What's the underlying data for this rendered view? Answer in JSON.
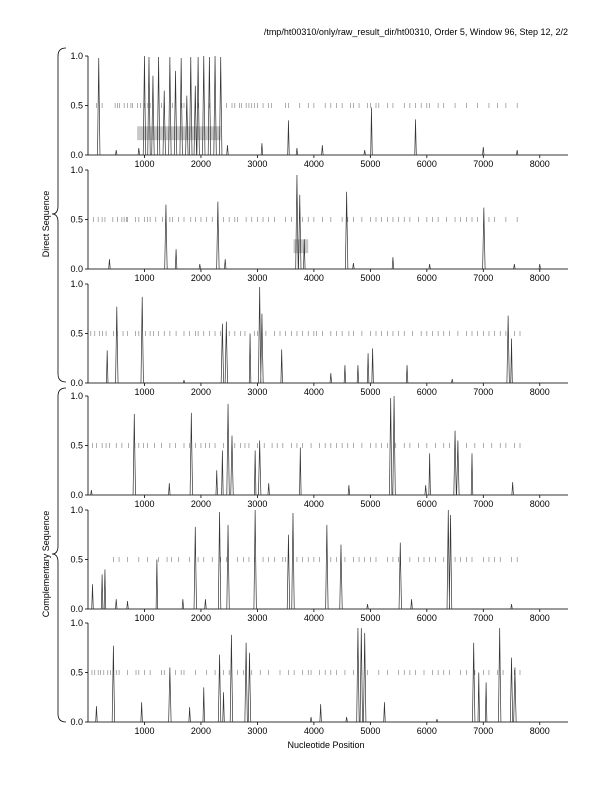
{
  "header": {
    "title": "/tmp/ht00310/only/raw_result_dir/ht00310, Order 5, Window 96, Step 12, 2/2"
  },
  "labels": {
    "xlabel": "Nucleotide Position",
    "direct_group": "Direct Sequence",
    "complementary_group": "Complementary Sequence"
  },
  "chart_data": [
    {
      "type": "line",
      "group": "direct",
      "ylim": [
        0,
        1
      ],
      "xlim": [
        0,
        8500
      ],
      "xticks": [
        1000,
        2000,
        3000,
        4000,
        5000,
        6000,
        7000,
        8000
      ],
      "yticks": [
        0.0,
        0.5,
        1.0
      ],
      "peaks": [
        [
          190,
          0.98
        ],
        [
          500,
          0.05
        ],
        [
          900,
          0.07
        ],
        [
          1000,
          1.0
        ],
        [
          1080,
          0.99
        ],
        [
          1150,
          0.8
        ],
        [
          1250,
          0.99
        ],
        [
          1350,
          0.65
        ],
        [
          1450,
          0.99
        ],
        [
          1550,
          0.85
        ],
        [
          1650,
          0.98
        ],
        [
          1750,
          0.6
        ],
        [
          1820,
          0.99
        ],
        [
          1900,
          0.7
        ],
        [
          1950,
          0.99
        ],
        [
          2050,
          1.0
        ],
        [
          2150,
          0.99
        ],
        [
          2250,
          1.0
        ],
        [
          2350,
          0.99
        ],
        [
          2470,
          0.1
        ],
        [
          3080,
          0.12
        ],
        [
          3550,
          0.35
        ],
        [
          3700,
          0.07
        ],
        [
          4150,
          0.1
        ],
        [
          4900,
          0.05
        ],
        [
          5020,
          0.48
        ],
        [
          5800,
          0.36
        ],
        [
          7000,
          0.08
        ],
        [
          7600,
          0.05
        ]
      ],
      "ticks_y": 0.5,
      "ticks_x": [
        150,
        200,
        250,
        480,
        520,
        560,
        640,
        700,
        760,
        790,
        880,
        930,
        1000,
        1060,
        1100,
        1300,
        1500,
        1650,
        1700,
        1950,
        2150,
        2450,
        2550,
        2600,
        2680,
        2720,
        2800,
        2850,
        2900,
        2950,
        3000,
        3100,
        3200,
        3250,
        3500,
        3550,
        3750,
        3900,
        4000,
        4200,
        4300,
        4400,
        4500,
        4650,
        4700,
        4800,
        4950,
        5000,
        5100,
        5150,
        5300,
        5400,
        5600,
        5700,
        5800,
        5900,
        6000,
        6050,
        6200,
        6300,
        6500,
        6700,
        6900,
        7100,
        7250,
        7400,
        7600
      ],
      "boxes": [
        {
          "x0": 870,
          "x1": 2350,
          "y0": 0.15,
          "y1": 0.29
        }
      ]
    },
    {
      "type": "line",
      "group": "direct",
      "ylim": [
        0,
        1
      ],
      "xlim": [
        0,
        8500
      ],
      "xticks": [
        1000,
        2000,
        3000,
        4000,
        5000,
        6000,
        7000,
        8000
      ],
      "yticks": [
        0.0,
        0.5,
        1.0
      ],
      "peaks": [
        [
          380,
          0.1
        ],
        [
          1380,
          0.65
        ],
        [
          1560,
          0.2
        ],
        [
          1980,
          0.05
        ],
        [
          2300,
          0.68
        ],
        [
          2430,
          0.1
        ],
        [
          3700,
          0.95
        ],
        [
          3750,
          0.75
        ],
        [
          3830,
          0.3
        ],
        [
          4580,
          0.78
        ],
        [
          4700,
          0.06
        ],
        [
          5400,
          0.12
        ],
        [
          6050,
          0.05
        ],
        [
          7010,
          0.62
        ],
        [
          7550,
          0.05
        ],
        [
          8000,
          0.05
        ]
      ],
      "ticks_y": 0.5,
      "ticks_x": [
        100,
        180,
        250,
        300,
        440,
        520,
        600,
        640,
        680,
        700,
        840,
        900,
        1000,
        1050,
        1100,
        1200,
        1320,
        1450,
        1500,
        1600,
        1700,
        1820,
        1900,
        2000,
        2100,
        2200,
        2400,
        2500,
        2600,
        2650,
        2800,
        2900,
        3000,
        3100,
        3200,
        3300,
        3500,
        3600,
        3800,
        3900,
        4000,
        4150,
        4300,
        4500,
        4600,
        4700,
        4850,
        5000,
        5100,
        5200,
        5300,
        5400,
        5500,
        5600,
        5700,
        5850,
        6000,
        6100,
        6200,
        6350,
        6500,
        6600,
        6700,
        6800,
        6900,
        7100,
        7200,
        7400,
        7600
      ],
      "boxes": [
        {
          "x0": 3640,
          "x1": 3900,
          "y0": 0.16,
          "y1": 0.3
        }
      ]
    },
    {
      "type": "line",
      "group": "direct",
      "ylim": [
        0,
        1
      ],
      "xlim": [
        0,
        8500
      ],
      "xticks": [
        1000,
        2000,
        3000,
        4000,
        5000,
        6000,
        7000,
        8000
      ],
      "yticks": [
        0.0,
        0.5,
        1.0
      ],
      "peaks": [
        [
          340,
          0.33
        ],
        [
          510,
          0.77
        ],
        [
          960,
          0.87
        ],
        [
          1700,
          0.03
        ],
        [
          2380,
          0.6
        ],
        [
          2450,
          0.62
        ],
        [
          2870,
          0.5
        ],
        [
          3040,
          0.97
        ],
        [
          3080,
          0.7
        ],
        [
          3430,
          0.34
        ],
        [
          4300,
          0.1
        ],
        [
          4550,
          0.18
        ],
        [
          4780,
          0.18
        ],
        [
          4960,
          0.3
        ],
        [
          5040,
          0.35
        ],
        [
          5650,
          0.18
        ],
        [
          6450,
          0.04
        ],
        [
          7440,
          0.68
        ],
        [
          7500,
          0.45
        ]
      ],
      "ticks_y": 0.5,
      "ticks_x": [
        50,
        120,
        200,
        260,
        320,
        450,
        520,
        620,
        700,
        840,
        900,
        1020,
        1100,
        1160,
        1250,
        1350,
        1450,
        1560,
        1700,
        1800,
        1900,
        1950,
        2050,
        2150,
        2250,
        2350,
        2500,
        2600,
        2700,
        2780,
        2950,
        3000,
        3150,
        3300,
        3400,
        3500,
        3600,
        3700,
        3800,
        3900,
        4000,
        4050,
        4150,
        4300,
        4400,
        4500,
        4620,
        4700,
        4850,
        5000,
        5100,
        5200,
        5300,
        5400,
        5500,
        5600,
        5750,
        5900,
        6000,
        6100,
        6200,
        6300,
        6400,
        6550,
        6700,
        6800,
        6900,
        7000,
        7100,
        7200,
        7300,
        7400,
        7550,
        7650
      ],
      "boxes": []
    },
    {
      "type": "line",
      "group": "complementary",
      "ylim": [
        0,
        1
      ],
      "xlim": [
        0,
        8500
      ],
      "xticks": [
        1000,
        2000,
        3000,
        4000,
        5000,
        6000,
        7000,
        8000
      ],
      "yticks": [
        0.0,
        0.5,
        1.0
      ],
      "peaks": [
        [
          60,
          0.05
        ],
        [
          820,
          0.82
        ],
        [
          1440,
          0.12
        ],
        [
          1830,
          0.83
        ],
        [
          2280,
          0.25
        ],
        [
          2380,
          0.45
        ],
        [
          2480,
          0.92
        ],
        [
          2550,
          0.6
        ],
        [
          2960,
          0.45
        ],
        [
          3040,
          0.55
        ],
        [
          3200,
          0.12
        ],
        [
          3760,
          0.48
        ],
        [
          4620,
          0.1
        ],
        [
          5360,
          0.98
        ],
        [
          5420,
          1.0
        ],
        [
          5980,
          0.1
        ],
        [
          6050,
          0.42
        ],
        [
          6500,
          0.65
        ],
        [
          6550,
          0.55
        ],
        [
          6800,
          0.42
        ],
        [
          7520,
          0.13
        ]
      ],
      "ticks_y": 0.5,
      "ticks_x": [
        80,
        150,
        250,
        320,
        380,
        500,
        600,
        720,
        830,
        900,
        980,
        1050,
        1180,
        1300,
        1450,
        1550,
        1700,
        1800,
        1900,
        2000,
        2080,
        2150,
        2250,
        2400,
        2600,
        2700,
        2780,
        2850,
        3000,
        3120,
        3260,
        3350,
        3450,
        3600,
        3700,
        3800,
        3950,
        4100,
        4200,
        4300,
        4400,
        4500,
        4600,
        4700,
        4850,
        5000,
        5100,
        5200,
        5300,
        5450,
        5600,
        5700,
        5850,
        6000,
        6150,
        6300,
        6400,
        6550,
        6700,
        6850,
        7000,
        7150,
        7300,
        7400,
        7550,
        7650
      ],
      "boxes": []
    },
    {
      "type": "line",
      "group": "complementary",
      "ylim": [
        0,
        1
      ],
      "xlim": [
        0,
        8500
      ],
      "xticks": [
        1000,
        2000,
        3000,
        4000,
        5000,
        6000,
        7000,
        8000
      ],
      "yticks": [
        0.0,
        0.5,
        1.0
      ],
      "peaks": [
        [
          80,
          0.25
        ],
        [
          250,
          0.35
        ],
        [
          300,
          0.4
        ],
        [
          500,
          0.1
        ],
        [
          700,
          0.08
        ],
        [
          1220,
          0.5
        ],
        [
          1680,
          0.1
        ],
        [
          1900,
          0.83
        ],
        [
          2080,
          0.1
        ],
        [
          2330,
          0.98
        ],
        [
          2480,
          0.85
        ],
        [
          2960,
          1.0
        ],
        [
          3550,
          0.75
        ],
        [
          3630,
          0.97
        ],
        [
          4230,
          0.85
        ],
        [
          4480,
          0.65
        ],
        [
          4950,
          0.05
        ],
        [
          5530,
          0.67
        ],
        [
          5730,
          0.1
        ],
        [
          6380,
          1.0
        ],
        [
          6420,
          0.95
        ],
        [
          7500,
          0.05
        ]
      ],
      "ticks_y": 0.5,
      "ticks_x": [
        450,
        550,
        700,
        900,
        1050,
        1250,
        1400,
        1480,
        1600,
        1800,
        1950,
        2050,
        2200,
        2350,
        2450,
        2650,
        2750,
        2850,
        2950,
        3100,
        3200,
        3300,
        3450,
        3500,
        3700,
        3800,
        3900,
        4000,
        4100,
        4300,
        4400,
        4550,
        4700,
        4800,
        4900,
        5000,
        5100,
        5300,
        5400,
        5500,
        5700,
        5850,
        5950,
        6050,
        6150,
        6300,
        6500,
        6600,
        6700,
        6800,
        7000,
        7100,
        7200,
        7300,
        7500,
        7600
      ],
      "boxes": []
    },
    {
      "type": "line",
      "group": "complementary",
      "ylim": [
        0,
        1
      ],
      "xlim": [
        0,
        8500
      ],
      "xticks": [
        1000,
        2000,
        3000,
        4000,
        5000,
        6000,
        7000,
        8000
      ],
      "yticks": [
        0.0,
        0.5,
        1.0
      ],
      "peaks": [
        [
          150,
          0.16
        ],
        [
          450,
          0.77
        ],
        [
          950,
          0.2
        ],
        [
          1450,
          0.55
        ],
        [
          1800,
          0.15
        ],
        [
          2050,
          0.35
        ],
        [
          2330,
          0.68
        ],
        [
          2400,
          0.3
        ],
        [
          2540,
          0.88
        ],
        [
          2800,
          0.8
        ],
        [
          2860,
          0.7
        ],
        [
          3950,
          0.05
        ],
        [
          4120,
          0.18
        ],
        [
          4580,
          0.05
        ],
        [
          4780,
          0.95
        ],
        [
          4840,
          0.95
        ],
        [
          4900,
          0.9
        ],
        [
          5250,
          0.2
        ],
        [
          6180,
          0.03
        ],
        [
          6830,
          0.8
        ],
        [
          6920,
          0.5
        ],
        [
          7050,
          0.4
        ],
        [
          7290,
          0.95
        ],
        [
          7500,
          0.65
        ],
        [
          7560,
          0.55
        ]
      ],
      "ticks_y": 0.5,
      "ticks_x": [
        70,
        120,
        180,
        220,
        280,
        350,
        400,
        500,
        550,
        700,
        850,
        900,
        1000,
        1100,
        1300,
        1350,
        1550,
        1650,
        1700,
        1900,
        2100,
        2250,
        2400,
        2500,
        2650,
        2750,
        2900,
        3050,
        3200,
        3400,
        3550,
        3650,
        3800,
        3900,
        3950,
        4100,
        4200,
        4300,
        4400,
        4550,
        4700,
        4850,
        4950,
        5150,
        5300,
        5500,
        5600,
        5700,
        5800,
        5950,
        6100,
        6200,
        6300,
        6400,
        6600,
        6700,
        6850,
        7000,
        7100,
        7250,
        7350,
        7550,
        7650
      ],
      "boxes": []
    }
  ]
}
